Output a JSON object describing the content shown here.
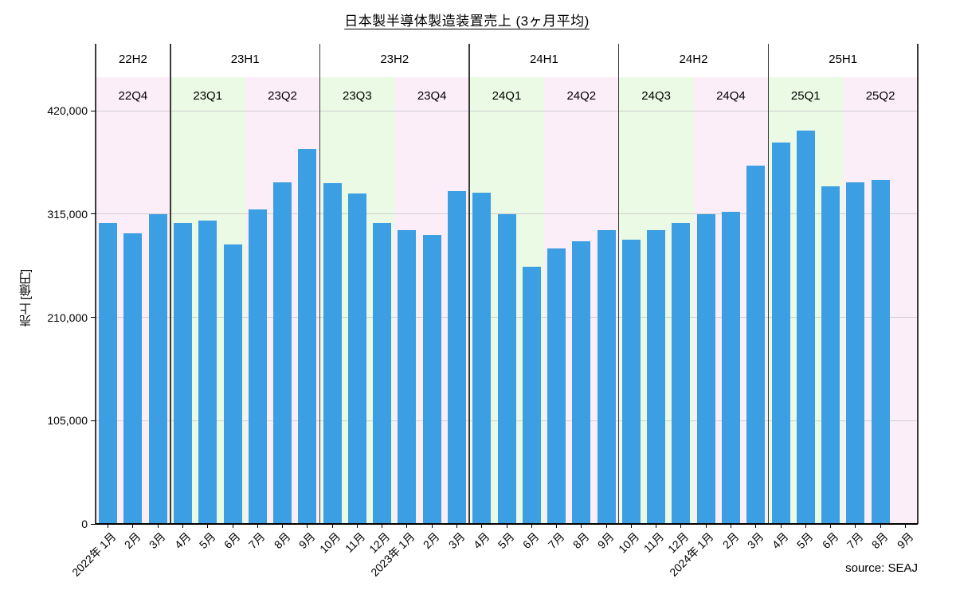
{
  "page": {
    "title": "日本製半導体製造装置売上 (3ヶ月平均)",
    "source": "source: SEAJ"
  },
  "chart_data": {
    "type": "bar",
    "title": "日本製半導体製造装置売上 (3ヶ月平均)",
    "xlabel": "",
    "ylabel": "売上 [億円]",
    "ylim": [
      0,
      455000
    ],
    "yticks": [
      0,
      105000,
      210000,
      315000,
      420000
    ],
    "ytick_labels": [
      "0",
      "105,000",
      "210,000",
      "315,000",
      "420,000"
    ],
    "grid": true,
    "legend": "none",
    "bar_color": "#3c9fe3",
    "band_colors": {
      "pink": "#fceef9",
      "green": "#eafae4"
    },
    "categories": [
      "2022年 1月",
      "2月",
      "3月",
      "4月",
      "5月",
      "6月",
      "7月",
      "8月",
      "9月",
      "10月",
      "11月",
      "12月",
      "2023年 1月",
      "2月",
      "3月",
      "4月",
      "5月",
      "6月",
      "7月",
      "8月",
      "9月",
      "10月",
      "11月",
      "12月",
      "2024年 1月",
      "2月",
      "3月",
      "4月",
      "5月",
      "6月",
      "7月",
      "8月",
      "9月"
    ],
    "values": [
      306000,
      295000,
      315000,
      306000,
      308000,
      284000,
      320000,
      347000,
      381000,
      346000,
      336000,
      306000,
      299000,
      294000,
      338000,
      337000,
      315000,
      261000,
      280000,
      287000,
      299000,
      289000,
      299000,
      306000,
      315000,
      317000,
      364000,
      388000,
      400000,
      343000,
      347000,
      350000,
      null
    ],
    "quarters": [
      {
        "label": "22Q4",
        "color": "pink"
      },
      {
        "label": "23Q1",
        "color": "green"
      },
      {
        "label": "23Q2",
        "color": "pink"
      },
      {
        "label": "23Q3",
        "color": "green"
      },
      {
        "label": "23Q4",
        "color": "pink"
      },
      {
        "label": "24Q1",
        "color": "green"
      },
      {
        "label": "24Q2",
        "color": "pink"
      },
      {
        "label": "24Q3",
        "color": "green"
      },
      {
        "label": "24Q4",
        "color": "pink"
      },
      {
        "label": "25Q1",
        "color": "green"
      },
      {
        "label": "25Q2",
        "color": "pink"
      }
    ],
    "half_years": [
      {
        "label": "22H2",
        "months": 3
      },
      {
        "label": "23H1",
        "months": 6
      },
      {
        "label": "23H2",
        "months": 6
      },
      {
        "label": "24H1",
        "months": 6
      },
      {
        "label": "24H2",
        "months": 6
      },
      {
        "label": "25H1",
        "months": 6
      }
    ],
    "source": "source: SEAJ"
  }
}
